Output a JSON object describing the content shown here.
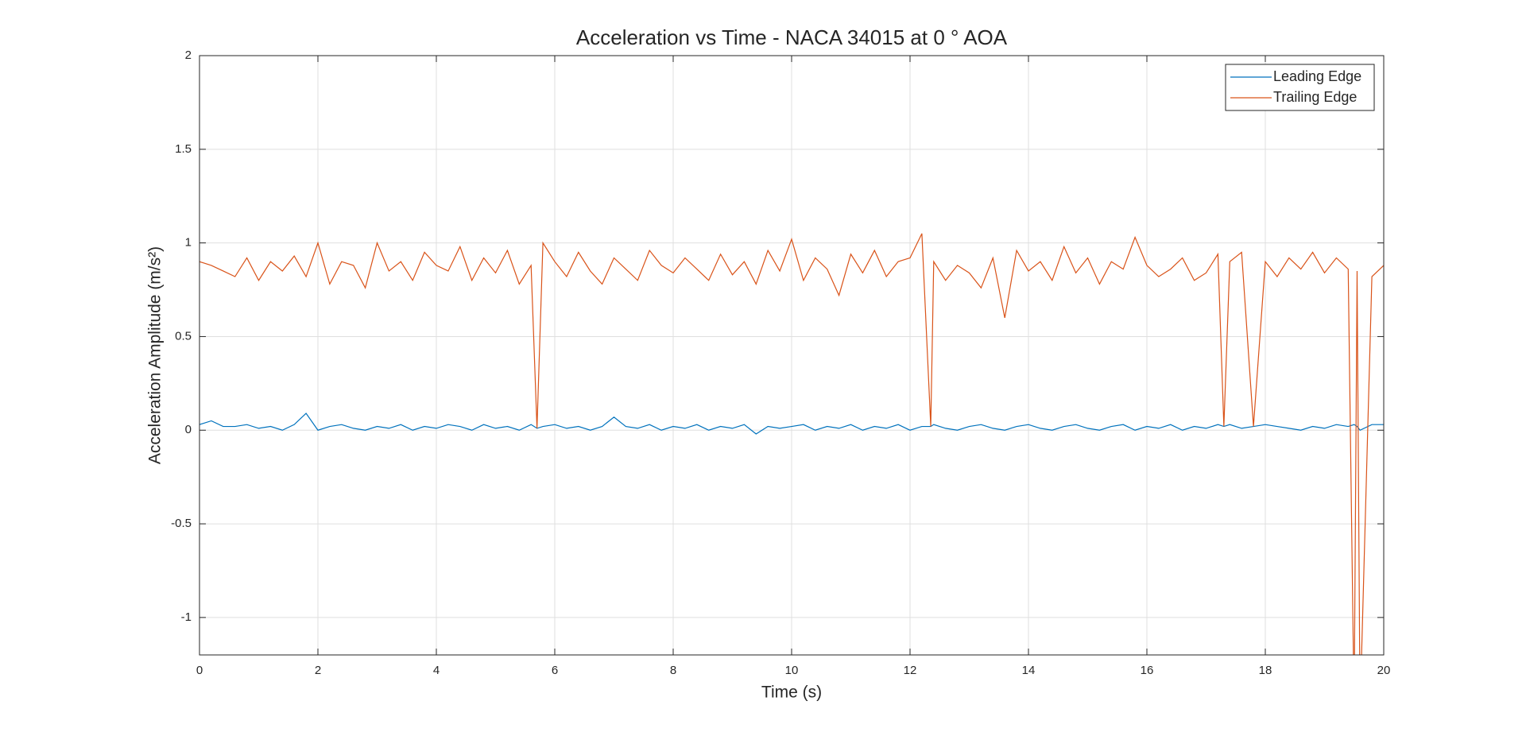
{
  "chart_data": {
    "type": "line",
    "title": "Acceleration vs Time - NACA 34015 at 0 ° AOA",
    "xlabel": "Time (s)",
    "ylabel": "Acceleration Amplitude (m/s²)",
    "x": [
      0,
      0.2,
      0.4,
      0.6,
      0.8,
      1,
      1.2,
      1.4,
      1.6,
      1.8,
      2,
      2.2,
      2.4,
      2.6,
      2.8,
      3,
      3.2,
      3.4,
      3.6,
      3.8,
      4,
      4.2,
      4.4,
      4.6,
      4.8,
      5,
      5.2,
      5.4,
      5.6,
      5.7,
      5.8,
      6,
      6.2,
      6.4,
      6.6,
      6.8,
      7,
      7.2,
      7.4,
      7.6,
      7.8,
      8,
      8.2,
      8.4,
      8.6,
      8.8,
      9,
      9.2,
      9.4,
      9.6,
      9.8,
      10,
      10.2,
      10.4,
      10.6,
      10.8,
      11,
      11.2,
      11.4,
      11.6,
      11.8,
      12,
      12.2,
      12.35,
      12.4,
      12.6,
      12.8,
      13,
      13.2,
      13.4,
      13.6,
      13.8,
      14,
      14.2,
      14.4,
      14.6,
      14.8,
      15,
      15.2,
      15.4,
      15.6,
      15.8,
      16,
      16.2,
      16.4,
      16.6,
      16.8,
      17,
      17.2,
      17.3,
      17.4,
      17.6,
      17.8,
      18,
      18.2,
      18.4,
      18.6,
      18.8,
      19,
      19.2,
      19.4,
      19.5,
      19.55,
      19.6,
      19.8,
      20
    ],
    "series": [
      {
        "name": "Leading Edge",
        "color": "#0072bd",
        "values": [
          0.03,
          0.05,
          0.02,
          0.02,
          0.03,
          0.01,
          0.02,
          0.0,
          0.03,
          0.09,
          0.0,
          0.02,
          0.03,
          0.01,
          0.0,
          0.02,
          0.01,
          0.03,
          0.0,
          0.02,
          0.01,
          0.03,
          0.02,
          0.0,
          0.03,
          0.01,
          0.02,
          0.0,
          0.03,
          0.01,
          0.02,
          0.03,
          0.01,
          0.02,
          0.0,
          0.02,
          0.07,
          0.02,
          0.01,
          0.03,
          0.0,
          0.02,
          0.01,
          0.03,
          0.0,
          0.02,
          0.01,
          0.03,
          -0.02,
          0.02,
          0.01,
          0.02,
          0.03,
          0.0,
          0.02,
          0.01,
          0.03,
          0.0,
          0.02,
          0.01,
          0.03,
          0.0,
          0.02,
          0.02,
          0.03,
          0.01,
          0.0,
          0.02,
          0.03,
          0.01,
          0.0,
          0.02,
          0.03,
          0.01,
          0.0,
          0.02,
          0.03,
          0.01,
          0.0,
          0.02,
          0.03,
          0.0,
          0.02,
          0.01,
          0.03,
          0.0,
          0.02,
          0.01,
          0.03,
          0.02,
          0.03,
          0.01,
          0.02,
          0.03,
          0.02,
          0.01,
          0.0,
          0.02,
          0.01,
          0.03,
          0.02,
          0.03,
          0.02,
          0.0,
          0.03,
          0.03
        ]
      },
      {
        "name": "Trailing Edge",
        "color": "#d95319",
        "values": [
          0.9,
          0.88,
          0.85,
          0.82,
          0.92,
          0.8,
          0.9,
          0.85,
          0.93,
          0.82,
          1.0,
          0.78,
          0.9,
          0.88,
          0.76,
          1.0,
          0.85,
          0.9,
          0.8,
          0.95,
          0.88,
          0.85,
          0.98,
          0.8,
          0.92,
          0.84,
          0.96,
          0.78,
          0.88,
          0.01,
          1.0,
          0.9,
          0.82,
          0.95,
          0.85,
          0.78,
          0.92,
          0.86,
          0.8,
          0.96,
          0.88,
          0.84,
          0.92,
          0.86,
          0.8,
          0.94,
          0.83,
          0.9,
          0.78,
          0.96,
          0.85,
          1.02,
          0.8,
          0.92,
          0.86,
          0.72,
          0.94,
          0.84,
          0.96,
          0.82,
          0.9,
          0.92,
          1.05,
          0.02,
          0.9,
          0.8,
          0.88,
          0.84,
          0.76,
          0.92,
          0.6,
          0.96,
          0.85,
          0.9,
          0.8,
          0.98,
          0.84,
          0.92,
          0.78,
          0.9,
          0.86,
          1.03,
          0.88,
          0.82,
          0.86,
          0.92,
          0.8,
          0.84,
          0.94,
          0.02,
          0.9,
          0.95,
          0.02,
          0.9,
          0.82,
          0.92,
          0.86,
          0.95,
          0.84,
          0.92,
          0.86,
          -1.5,
          0.85,
          -1.5,
          0.82,
          0.88
        ]
      }
    ],
    "xlim": [
      0,
      20
    ],
    "xticks": [
      0,
      2,
      4,
      6,
      8,
      10,
      12,
      14,
      16,
      18,
      20
    ],
    "ylim": [
      -1.2,
      2
    ],
    "yticks": [
      -1,
      -0.5,
      0,
      0.5,
      1,
      1.5,
      2
    ],
    "grid": true,
    "legend": "upper right"
  }
}
